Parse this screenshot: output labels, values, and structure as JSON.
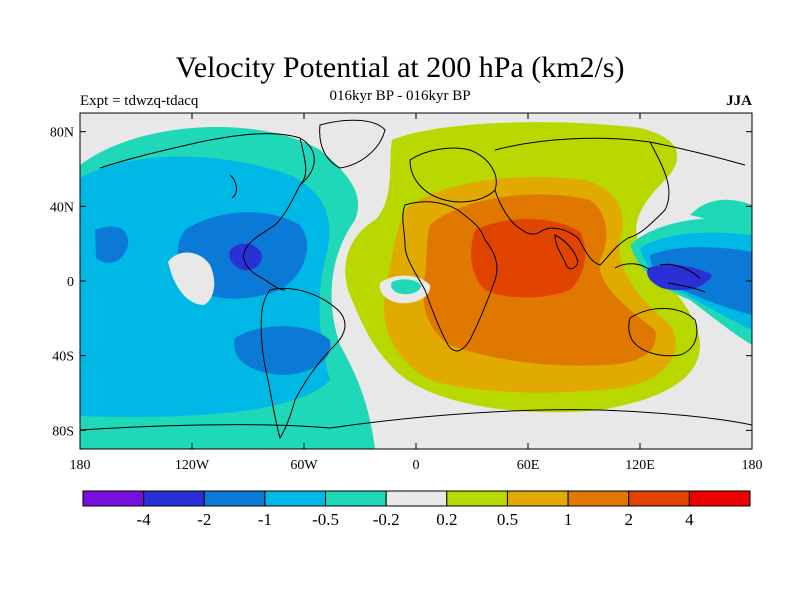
{
  "header": {
    "title": "Velocity Potential at 200 hPa (km2/s)",
    "subtitle": "016kyr BP - 016kyr BP",
    "left_label": "Expt = tdwzq-tdacq",
    "right_label": "JJA"
  },
  "axes": {
    "lat_ticks": [
      {
        "value": 80,
        "label": "80N"
      },
      {
        "value": 40,
        "label": "40N"
      },
      {
        "value": 0,
        "label": "0"
      },
      {
        "value": -40,
        "label": "40S"
      },
      {
        "value": -80,
        "label": "80S"
      }
    ],
    "lon_ticks": [
      {
        "value": -180,
        "label": "180"
      },
      {
        "value": -120,
        "label": "120W"
      },
      {
        "value": -60,
        "label": "60W"
      },
      {
        "value": 0,
        "label": "0"
      },
      {
        "value": 60,
        "label": "60E"
      },
      {
        "value": 120,
        "label": "120E"
      },
      {
        "value": 180,
        "label": "180"
      }
    ],
    "lon_range": [
      -180,
      180
    ],
    "lat_range": [
      -90,
      90
    ]
  },
  "colorbar": {
    "colors": [
      "#7710dd",
      "#2b2fd6",
      "#0a7ad6",
      "#00b8e6",
      "#1ed8b8",
      "#e8e8e8",
      "#b8d800",
      "#e0aa00",
      "#e07800",
      "#e04400",
      "#ee0000"
    ],
    "labels": [
      "-4",
      "-2",
      "-1",
      "-0.5",
      "-0.2",
      "0.2",
      "0.5",
      "1",
      "2",
      "4"
    ]
  },
  "map": {
    "background_color": "#e8e8e8",
    "coastline_color": "#000000"
  }
}
